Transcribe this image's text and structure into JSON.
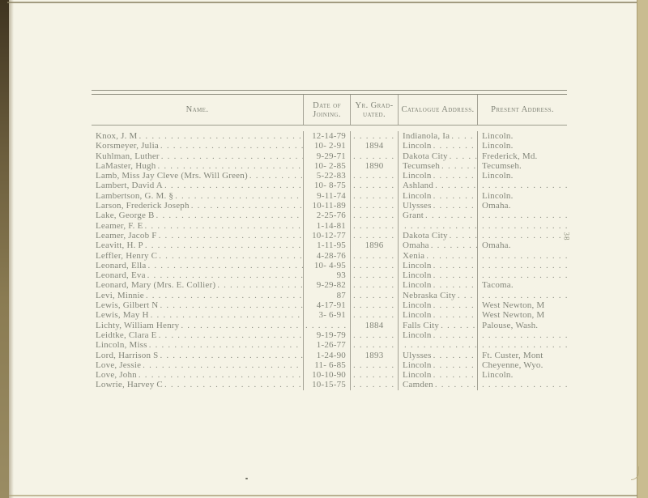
{
  "page": {
    "side_page_number": "38",
    "colors": {
      "paper": "#f5f3e6",
      "ink": "#83867a",
      "rule": "#a5a396",
      "edge_tan": "#c9bc90",
      "edge_dark": "#3f3420"
    }
  },
  "table": {
    "headers": {
      "name": "Name.",
      "date_line1": "Date of",
      "date_line2": "Joining.",
      "grad_line1": "Yr. Grad-",
      "grad_line2": "uated.",
      "catalogue": "Catalogue Address.",
      "present": "Present Address."
    },
    "rows": [
      {
        "name": "Knox, J. M",
        "date": "12-14-79",
        "grad": "",
        "catalogue": "Indianola, Ia",
        "present": "Lincoln."
      },
      {
        "name": "Korsmeyer, Julia",
        "date": "10- 2-91",
        "grad": "1894",
        "catalogue": "Lincoln",
        "present": "Lincoln."
      },
      {
        "name": "Kuhlman, Luther",
        "date": "9-29-71",
        "grad": "",
        "catalogue": "Dakota City",
        "present": "Frederick, Md."
      },
      {
        "name": "LaMaster, Hugh",
        "date": "10- 2-85",
        "grad": "1890",
        "catalogue": "Tecumseh",
        "present": "Tecumseh."
      },
      {
        "name": "Lamb, Miss Jay Cleve (Mrs. Will Green)",
        "date": "5-22-83",
        "grad": "",
        "catalogue": "Lincoln",
        "present": "Lincoln."
      },
      {
        "name": "Lambert, David A",
        "date": "10- 8-75",
        "grad": "",
        "catalogue": "Ashland",
        "present": ""
      },
      {
        "name": "Lambertson, G. M. §",
        "date": "9-11-74",
        "grad": "",
        "catalogue": "Lincoln",
        "present": "Lincoln."
      },
      {
        "name": "Larson, Frederick Joseph",
        "date": "10-11-89",
        "grad": "",
        "catalogue": "Ulysses",
        "present": "Omaha."
      },
      {
        "name": "Lake, George B",
        "date": "2-25-76",
        "grad": "",
        "catalogue": "Grant",
        "present": ""
      },
      {
        "name": "Leamer, F. E",
        "date": "1-14-81",
        "grad": "",
        "catalogue": "",
        "present": ""
      },
      {
        "name": "Leamer, Jacob F",
        "date": "10-12-77",
        "grad": "",
        "catalogue": "Dakota City",
        "present": ""
      },
      {
        "name": "Leavitt, H. P",
        "date": "1-11-95",
        "grad": "1896",
        "catalogue": "Omaha",
        "present": "Omaha."
      },
      {
        "name": "Leffler, Henry C",
        "date": "4-28-76",
        "grad": "",
        "catalogue": "Xenia",
        "present": ""
      },
      {
        "name": "Leonard, Ella",
        "date": "10- 4-95",
        "grad": "",
        "catalogue": "Lincoln",
        "present": ""
      },
      {
        "name": "Leonard, Eva",
        "date": "93",
        "grad": "",
        "catalogue": "Lincoln",
        "present": ""
      },
      {
        "name": "Leonard, Mary (Mrs. E. Collier)",
        "date": "9-29-82",
        "grad": "",
        "catalogue": "Lincoln",
        "present": "Tacoma."
      },
      {
        "name": "Levi, Minnie",
        "date": "87",
        "grad": "",
        "catalogue": "Nebraska City",
        "present": ""
      },
      {
        "name": "Lewis, Gilbert N",
        "date": "4-17-91",
        "grad": "",
        "catalogue": "Lincoln",
        "present": "West Newton, M"
      },
      {
        "name": "Lewis, May H",
        "date": "3- 6-91",
        "grad": "",
        "catalogue": "Lincoln",
        "present": "West Newton, M"
      },
      {
        "name": "Lichty, William Henry",
        "date": "",
        "grad": "1884",
        "catalogue": "Falls City",
        "present": "Palouse, Wash."
      },
      {
        "name": "Leidtke, Clara E",
        "date": "9-19-79",
        "grad": "",
        "catalogue": "Lincoln",
        "present": ""
      },
      {
        "name": "Lincoln, Miss",
        "date": "1-26-77",
        "grad": "",
        "catalogue": "",
        "present": ""
      },
      {
        "name": "Lord, Harrison S",
        "date": "1-24-90",
        "grad": "1893",
        "catalogue": "Ulysses",
        "present": "Ft. Custer, Mont"
      },
      {
        "name": "Love, Jessie",
        "date": "11- 6-85",
        "grad": "",
        "catalogue": "Lincoln",
        "present": "Cheyenne, Wyo."
      },
      {
        "name": "Love, John",
        "date": "10-10-90",
        "grad": "",
        "catalogue": "Lincoln",
        "present": "Lincoln."
      },
      {
        "name": "Lowrie, Harvey C",
        "date": "10-15-75",
        "grad": "",
        "catalogue": "Camden",
        "present": ""
      }
    ]
  },
  "ui": {
    "leader_dots": ". . . . . . . . . . . . . . . . . . . . . . . . . . . . . . . . . . . . . . . . . . . . . . . . . . . . . . . . . . . . . . . . . . . . . . . . . . . . . . . ."
  }
}
